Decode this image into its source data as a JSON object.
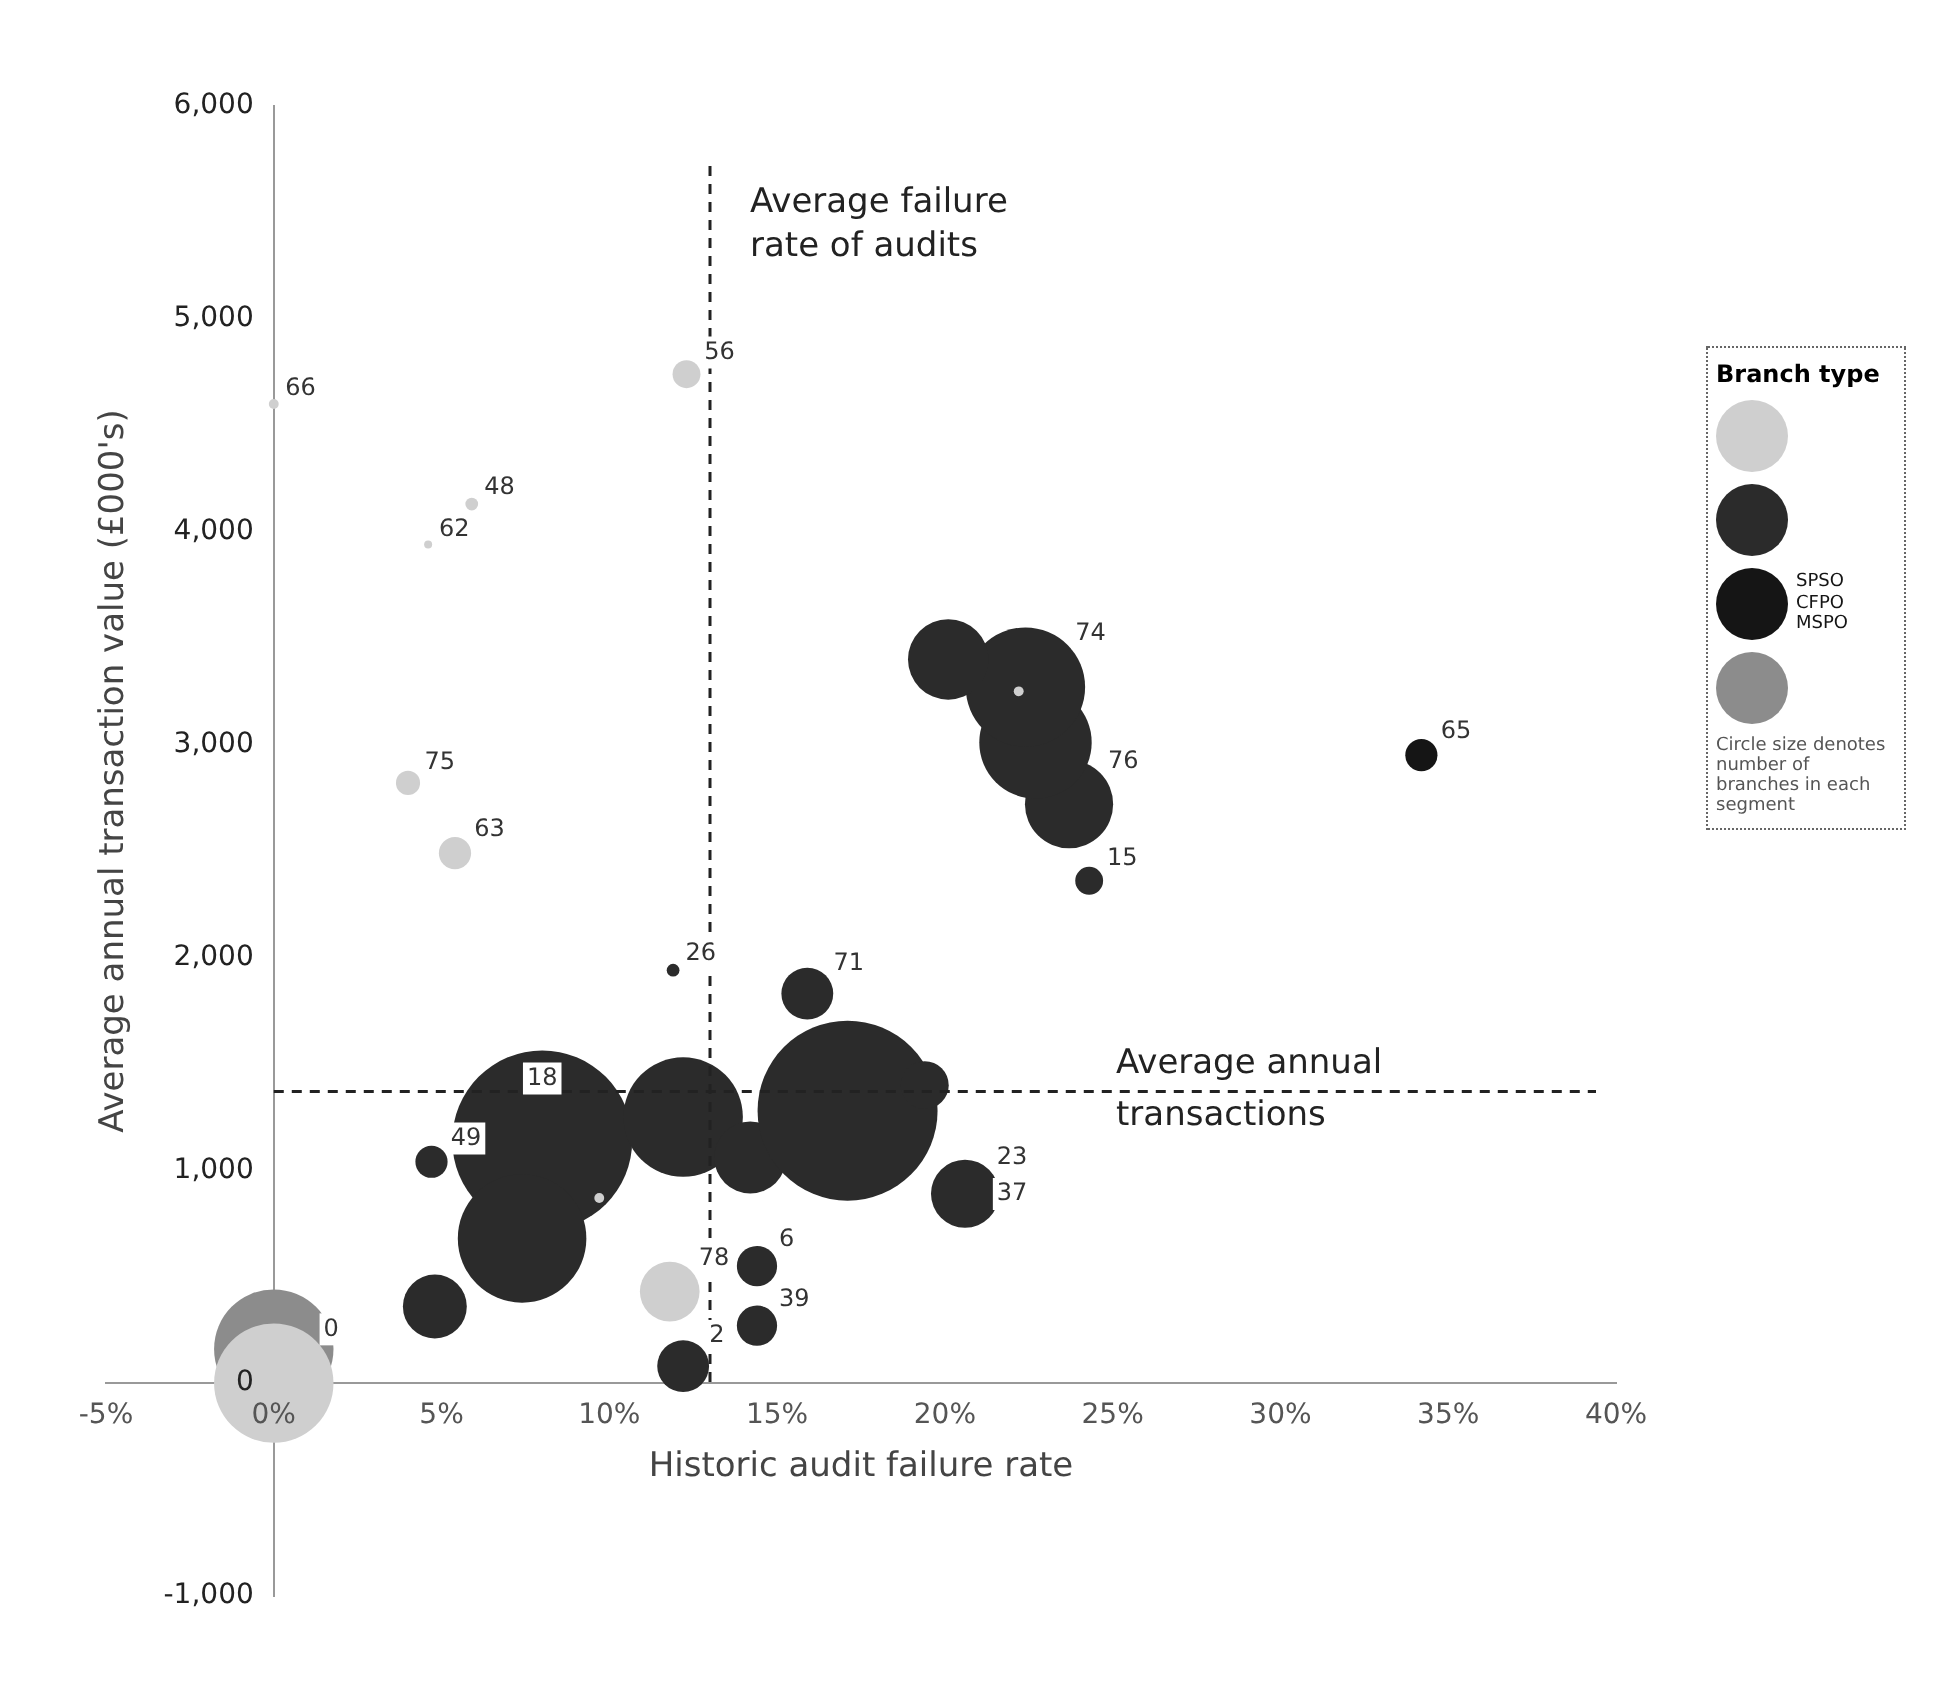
{
  "chart_data": {
    "type": "bubble",
    "xlabel": "Historic audit failure rate",
    "ylabel": "Average annual transaction value (£000's)",
    "legend_title": "Branch type",
    "legend": "right",
    "xlim": [
      -5,
      40
    ],
    "xticks": [
      {
        "value": -5,
        "label": "-5%"
      },
      {
        "value": 0,
        "label": "0%"
      },
      {
        "value": 5,
        "label": "5%"
      },
      {
        "value": 10,
        "label": "10%"
      },
      {
        "value": 15,
        "label": "15%"
      },
      {
        "value": 20,
        "label": "20%"
      },
      {
        "value": 25,
        "label": "25%"
      },
      {
        "value": 30,
        "label": "30%"
      },
      {
        "value": 35,
        "label": "35%"
      },
      {
        "value": 40,
        "label": "40%"
      }
    ],
    "ylim": [
      -1000,
      6000
    ],
    "yticks": [
      {
        "value": -1000,
        "label": "-1,000"
      },
      0,
      {
        "value": 1000,
        "label": "1,000"
      },
      {
        "value": 2000,
        "label": "2,000"
      },
      {
        "value": 3000,
        "label": "3,000"
      },
      {
        "value": 4000,
        "label": "4,000"
      },
      {
        "value": 5000,
        "label": "5,000"
      },
      {
        "value": 6000,
        "label": "6,000"
      }
    ],
    "grid": false,
    "series": [
      {
        "color": "#cfcfcf",
        "x": [
          0,
          12.3,
          5.9,
          4.6,
          4.0,
          5.4,
          11.8,
          22.2,
          9.7,
          0
        ],
        "values": [
          4600,
          4740,
          4130,
          3940,
          2820,
          2490,
          430,
          3250,
          870,
          0
        ],
        "sizes": [
          0.003,
          0.024,
          0.005,
          0.002,
          0.018,
          0.032,
          0.11,
          0.003,
          0.003,
          0.44
        ]
      },
      {
        "color": "#2b2b2b",
        "x": [
          11.9,
          15.9,
          8.0,
          7.4,
          4.7,
          4.8,
          12.2,
          14.2,
          14.4,
          14.4,
          12.2,
          17.1,
          19.4,
          20.6,
          24.3,
          23.7,
          22.7,
          22.4,
          20.1
        ],
        "values": [
          1940,
          1830,
          1140,
          680,
          1040,
          360,
          1250,
          1060,
          550,
          270,
          80,
          1280,
          1400,
          890,
          2360,
          2720,
          3010,
          3270,
          3400
        ],
        "sizes": [
          0.005,
          0.083,
          1,
          0.51,
          0.032,
          0.126,
          0.44,
          0.16,
          0.05,
          0.05,
          0.083,
          1,
          0.071,
          0.143,
          0.024,
          0.24,
          0.39,
          0.44,
          0.2
        ]
      },
      {
        "name": "SPSO CFPO MSPO",
        "color": "#151515",
        "x": [
          34.2
        ],
        "values": [
          2950
        ],
        "sizes": [
          0.032
        ]
      },
      {
        "color": "#8c8c8c",
        "x": [
          0
        ],
        "values": [
          160
        ],
        "sizes": [
          0.44
        ]
      }
    ],
    "ref_lines": [
      {
        "axis": "x",
        "value": 13,
        "label": "Average failure rate of audits",
        "line_style": "dashed",
        "color": "#222222"
      },
      {
        "axis": "y",
        "value": 1370,
        "label": "Average annual transactions",
        "line_style": "dashed",
        "color": "#222222"
      }
    ],
    "annotations": [
      "Circle size denotes number of branches in each segment",
      {
        "text": "66",
        "x": 0,
        "y": 4600
      },
      {
        "text": "56",
        "x": 12.3,
        "y": 4740
      },
      {
        "text": "48",
        "x": 5.9,
        "y": 4130
      },
      {
        "text": "62",
        "x": 4.6,
        "y": 3940
      },
      {
        "text": "75",
        "x": 4.0,
        "y": 2820
      },
      {
        "text": "63",
        "x": 5.4,
        "y": 2490
      },
      {
        "text": "26",
        "x": 11.9,
        "y": 1940
      },
      {
        "text": "71",
        "x": 15.9,
        "y": 1830
      },
      {
        "text": "18",
        "x": 8.0,
        "y": 1140
      },
      {
        "text": "49",
        "x": 4.7,
        "y": 1040
      },
      {
        "text": "78",
        "x": 11.8,
        "y": 430
      },
      {
        "text": "6",
        "x": 14.4,
        "y": 550
      },
      {
        "text": "39",
        "x": 14.4,
        "y": 270
      },
      {
        "text": "2",
        "x": 12.2,
        "y": 80
      },
      {
        "text": "0",
        "x": 0,
        "y": 0
      },
      {
        "text": "23",
        "x": 20.6,
        "y": 890
      },
      {
        "text": "37",
        "x": 20.6,
        "y": 890
      },
      {
        "text": "65",
        "x": 34.2,
        "y": 2950
      },
      {
        "text": "15",
        "x": 24.3,
        "y": 2360
      },
      {
        "text": "76",
        "x": 23.7,
        "y": 2720
      },
      {
        "text": "74",
        "x": 22.4,
        "y": 3270
      }
    ]
  }
}
